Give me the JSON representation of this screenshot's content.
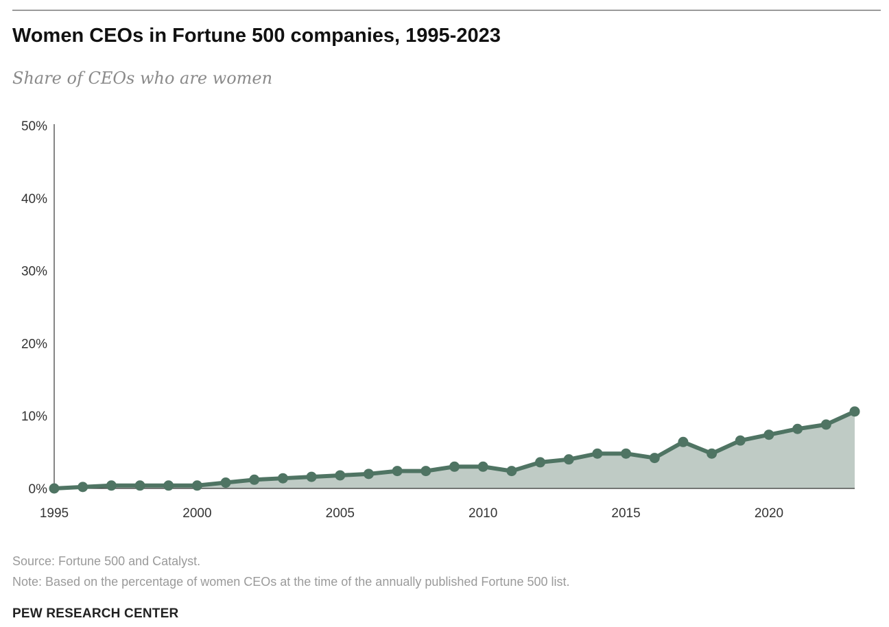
{
  "title": "Women CEOs in Fortune 500 companies, 1995-2023",
  "subtitle": "Share of CEOs who are women",
  "source": "Source: Fortune 500 and Catalyst.",
  "note": "Note: Based on the percentage of women CEOs at the time of the annually published Fortune 500 list.",
  "credit": "PEW RESEARCH CENTER",
  "colors": {
    "line": "#4f7463",
    "area": "#bfcbc5",
    "axis": "#333333"
  },
  "chart_data": {
    "type": "area",
    "title": "Women CEOs in Fortune 500 companies, 1995-2023",
    "subtitle": "Share of CEOs who are women",
    "xlabel": "",
    "ylabel": "",
    "xlim": [
      1995,
      2023
    ],
    "ylim": [
      0,
      50
    ],
    "y_ticks": [
      0,
      10,
      20,
      30,
      40,
      50
    ],
    "y_tick_labels": [
      "0%",
      "10%",
      "20%",
      "30%",
      "40%",
      "50%"
    ],
    "x_ticks": [
      1995,
      2000,
      2005,
      2010,
      2015,
      2020
    ],
    "x_tick_labels": [
      "1995",
      "2000",
      "2005",
      "2010",
      "2015",
      "2020"
    ],
    "grid": false,
    "x": [
      1995,
      1996,
      1997,
      1998,
      1999,
      2000,
      2001,
      2002,
      2003,
      2004,
      2005,
      2006,
      2007,
      2008,
      2009,
      2010,
      2011,
      2012,
      2013,
      2014,
      2015,
      2016,
      2017,
      2018,
      2019,
      2020,
      2021,
      2022,
      2023
    ],
    "series": [
      {
        "values": [
          0.0,
          0.2,
          0.4,
          0.4,
          0.4,
          0.4,
          0.8,
          1.2,
          1.4,
          1.6,
          1.8,
          2.0,
          2.4,
          2.4,
          3.0,
          3.0,
          2.4,
          3.6,
          4.0,
          4.8,
          4.8,
          4.2,
          6.4,
          4.8,
          6.6,
          7.4,
          8.2,
          8.8,
          10.6
        ]
      }
    ]
  }
}
